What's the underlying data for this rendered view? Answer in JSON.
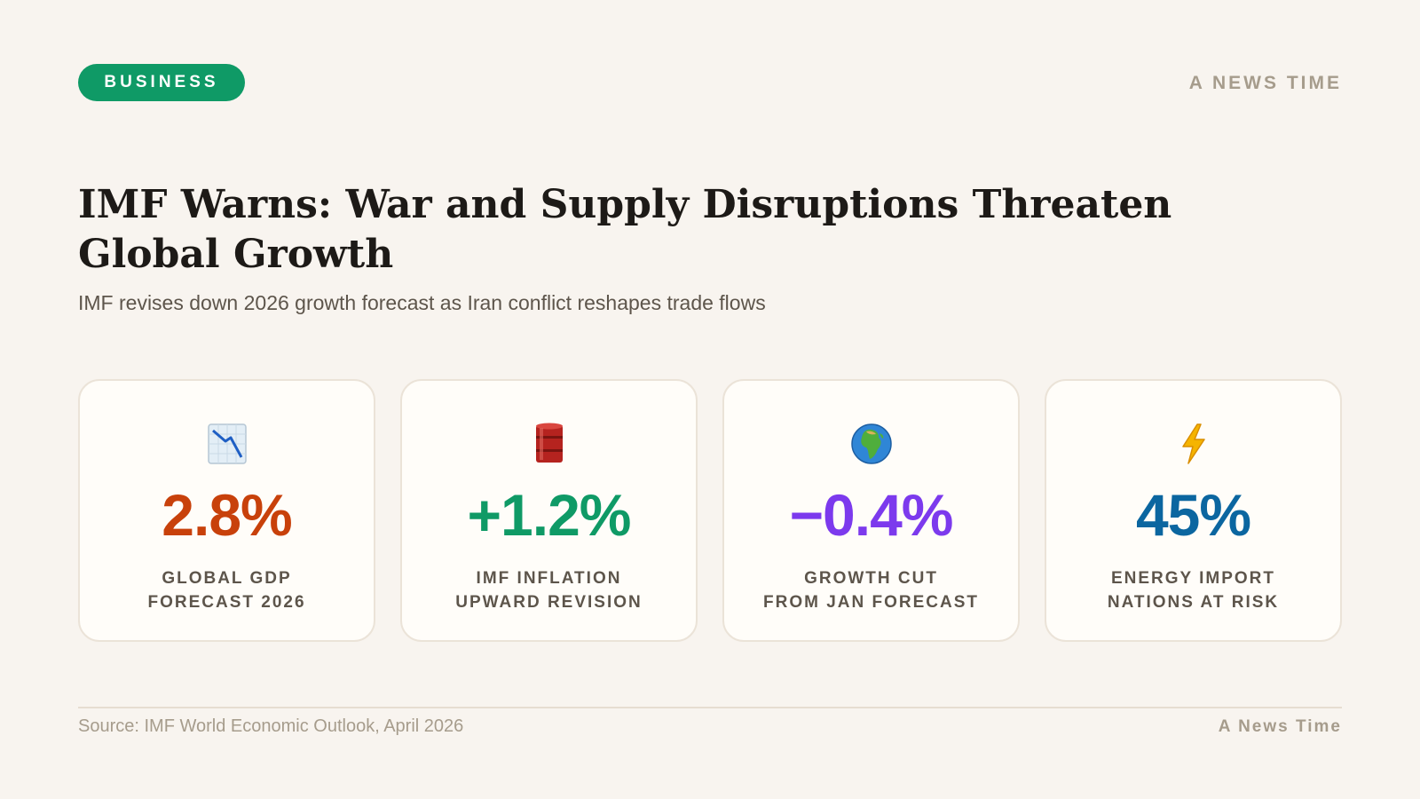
{
  "header": {
    "category_badge": "BUSINESS",
    "brand": "A NEWS TIME"
  },
  "article": {
    "headline": "IMF Warns: War and Supply Disruptions Threaten Global Growth",
    "subheadline": "IMF revises down 2026 growth forecast as Iran conflict reshapes trade flows"
  },
  "stats": [
    {
      "icon": "chart-decreasing-icon",
      "value": "2.8%",
      "label": "GLOBAL GDP\nFORECAST 2026",
      "color": "#c8410b"
    },
    {
      "icon": "oil-drum-icon",
      "value": "+1.2%",
      "label": "IMF INFLATION\nUPWARD REVISION",
      "color": "#0f9a66"
    },
    {
      "icon": "globe-africa-icon",
      "value": "−0.4%",
      "label": "GROWTH CUT\nFROM JAN FORECAST",
      "color": "#7c3aed"
    },
    {
      "icon": "lightning-icon",
      "value": "45%",
      "label": "ENERGY IMPORT\nNATIONS AT RISK",
      "color": "#0b66a0"
    }
  ],
  "footer": {
    "source": "Source: IMF World Economic Outlook, April 2026",
    "brand": "A News Time"
  },
  "colors": {
    "background": "#f8f4ef",
    "accent": "#0f9a66",
    "muted_text": "#a69c8c"
  }
}
